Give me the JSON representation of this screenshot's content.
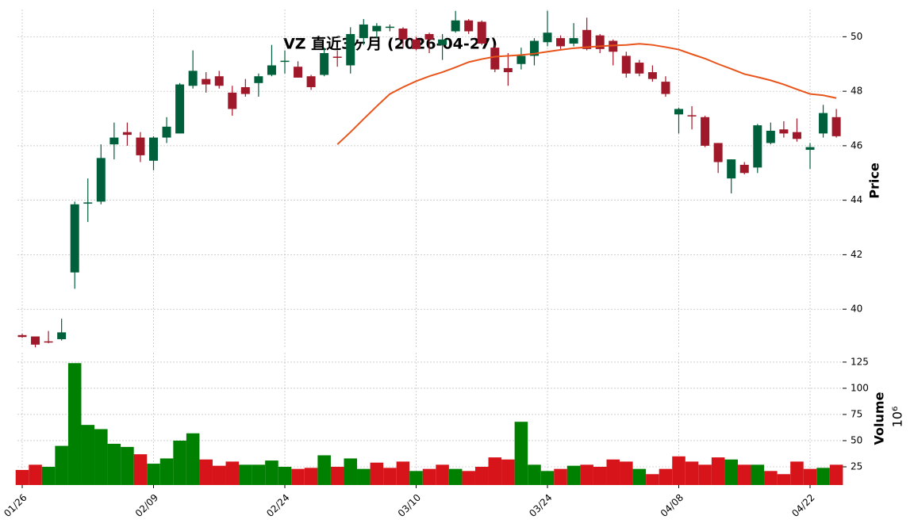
{
  "chart_data": {
    "type": "candlestick",
    "title": "VZ 直近3ヶ月 (2026-04-27)",
    "categories": [
      "01/26",
      null,
      null,
      null,
      null,
      null,
      null,
      null,
      null,
      null,
      "02/09",
      null,
      null,
      null,
      null,
      null,
      null,
      null,
      null,
      null,
      "02/24",
      null,
      null,
      null,
      null,
      null,
      null,
      null,
      null,
      null,
      "03/10",
      null,
      null,
      null,
      null,
      null,
      null,
      null,
      null,
      null,
      "03/24",
      null,
      null,
      null,
      null,
      null,
      null,
      null,
      null,
      null,
      "04/08",
      null,
      null,
      null,
      null,
      null,
      null,
      null,
      null,
      null,
      "04/22",
      null,
      null
    ],
    "open": [
      39.05,
      39.0,
      38.82,
      38.9,
      41.35,
      43.88,
      43.95,
      46.05,
      46.5,
      46.3,
      45.45,
      46.3,
      46.45,
      48.2,
      48.45,
      48.55,
      47.95,
      48.15,
      48.3,
      48.6,
      49.08,
      48.9,
      48.55,
      48.6,
      49.27,
      48.95,
      49.95,
      50.2,
      50.33,
      50.3,
      49.9,
      50.1,
      49.7,
      50.2,
      50.6,
      50.55,
      49.6,
      48.85,
      49.0,
      49.3,
      49.8,
      49.95,
      49.75,
      50.25,
      50.05,
      49.85,
      49.3,
      49.05,
      48.7,
      48.35,
      47.15,
      47.12,
      47.05,
      46.1,
      44.8,
      45.3,
      45.2,
      46.1,
      46.6,
      46.5,
      45.85,
      46.45,
      47.05
    ],
    "high": [
      39.1,
      39.0,
      39.2,
      39.65,
      43.95,
      44.8,
      46.05,
      46.85,
      46.85,
      46.5,
      46.35,
      47.05,
      48.3,
      49.5,
      48.7,
      48.75,
      48.2,
      48.45,
      48.65,
      49.7,
      49.5,
      49.1,
      48.6,
      49.6,
      49.5,
      50.35,
      50.65,
      50.5,
      50.45,
      50.35,
      50.0,
      50.15,
      50.1,
      50.95,
      50.65,
      50.6,
      49.7,
      49.4,
      49.6,
      49.95,
      50.95,
      50.05,
      50.5,
      50.7,
      50.1,
      49.9,
      49.45,
      49.15,
      48.95,
      48.55,
      47.4,
      47.45,
      47.1,
      46.1,
      45.5,
      45.4,
      46.8,
      46.85,
      46.9,
      47.0,
      46.1,
      47.5,
      47.35
    ],
    "low": [
      38.95,
      38.6,
      38.75,
      38.85,
      40.75,
      43.2,
      43.85,
      45.5,
      46.0,
      45.4,
      45.1,
      46.1,
      46.45,
      48.1,
      47.95,
      48.1,
      47.1,
      47.8,
      47.8,
      48.55,
      48.65,
      48.5,
      48.05,
      48.55,
      48.9,
      48.65,
      49.7,
      49.95,
      50.2,
      49.6,
      49.5,
      49.4,
      49.15,
      50.15,
      50.1,
      49.7,
      48.7,
      48.2,
      48.8,
      48.95,
      49.65,
      49.55,
      49.65,
      49.5,
      49.4,
      48.95,
      48.5,
      48.55,
      48.35,
      47.8,
      46.45,
      46.6,
      45.95,
      45.0,
      44.25,
      44.95,
      45.0,
      46.05,
      46.3,
      46.15,
      45.15,
      46.3,
      46.3
    ],
    "close": [
      38.98,
      38.7,
      38.78,
      39.15,
      43.85,
      43.92,
      45.55,
      46.3,
      46.4,
      45.65,
      46.3,
      46.7,
      48.25,
      48.75,
      48.25,
      48.2,
      47.35,
      47.9,
      48.55,
      48.95,
      49.12,
      48.5,
      48.15,
      49.4,
      49.23,
      50.1,
      50.45,
      50.4,
      50.37,
      49.9,
      49.55,
      49.9,
      49.9,
      50.6,
      50.2,
      49.75,
      48.8,
      48.7,
      49.3,
      49.85,
      50.15,
      49.65,
      49.95,
      49.55,
      49.55,
      49.45,
      48.65,
      48.65,
      48.45,
      47.9,
      47.35,
      47.08,
      46.0,
      45.4,
      45.5,
      45.0,
      46.75,
      46.55,
      46.45,
      46.25,
      45.95,
      47.2,
      46.35
    ],
    "up_color": "#00603c",
    "down_color": "#a0192a",
    "moving_average": {
      "color": "#e8541a",
      "values": [
        null,
        null,
        null,
        null,
        null,
        null,
        null,
        null,
        null,
        null,
        null,
        null,
        null,
        null,
        null,
        null,
        null,
        null,
        null,
        null,
        null,
        null,
        null,
        null,
        46.05,
        46.5,
        46.98,
        47.45,
        47.9,
        48.15,
        48.37,
        48.55,
        48.7,
        48.88,
        49.07,
        49.18,
        49.27,
        49.3,
        49.33,
        49.38,
        49.45,
        49.52,
        49.58,
        49.62,
        49.65,
        49.68,
        49.7,
        49.74,
        49.7,
        49.62,
        49.53,
        49.36,
        49.2,
        49.0,
        48.82,
        48.63,
        48.52,
        48.4,
        48.25,
        48.07,
        47.9,
        47.85,
        47.75
      ]
    },
    "ylabel": "Price",
    "ylim": [
      38.55,
      51.0
    ],
    "yticks": [
      40,
      42,
      44,
      46,
      48,
      50
    ],
    "grid": true,
    "volume": {
      "ylabel": "Volume",
      "scale_label": "10⁶",
      "ylim": [
        7.6,
        134
      ],
      "yticks": [
        25,
        50,
        75,
        100,
        125
      ],
      "values": [
        22,
        27,
        25,
        45,
        124,
        65,
        61,
        47,
        44,
        37,
        28,
        33,
        50,
        57,
        32,
        26,
        30,
        27,
        27,
        31,
        25,
        23,
        24,
        36,
        25,
        33,
        23,
        29,
        24,
        30,
        21,
        23,
        27,
        23,
        21,
        25,
        34,
        32,
        68,
        27,
        21,
        23,
        26,
        27,
        25,
        32,
        30,
        23,
        18,
        23,
        35,
        30,
        27,
        34,
        32,
        27,
        27,
        21,
        18,
        30,
        23,
        24,
        27
      ],
      "colors": [
        "#d7141a",
        "#d7141a",
        "#008000",
        "#008000",
        "#008000",
        "#008000",
        "#008000",
        "#008000",
        "#008000",
        "#d7141a",
        "#008000",
        "#008000",
        "#008000",
        "#008000",
        "#d7141a",
        "#d7141a",
        "#d7141a",
        "#008000",
        "#008000",
        "#008000",
        "#008000",
        "#d7141a",
        "#d7141a",
        "#008000",
        "#d7141a",
        "#008000",
        "#008000",
        "#d7141a",
        "#d7141a",
        "#d7141a",
        "#008000",
        "#d7141a",
        "#d7141a",
        "#008000",
        "#d7141a",
        "#d7141a",
        "#d7141a",
        "#d7141a",
        "#008000",
        "#008000",
        "#008000",
        "#d7141a",
        "#008000",
        "#d7141a",
        "#d7141a",
        "#d7141a",
        "#d7141a",
        "#008000",
        "#d7141a",
        "#d7141a",
        "#d7141a",
        "#d7141a",
        "#d7141a",
        "#d7141a",
        "#008000",
        "#d7141a",
        "#008000",
        "#d7141a",
        "#d7141a",
        "#d7141a",
        "#d7141a",
        "#008000",
        "#d7141a"
      ]
    }
  }
}
